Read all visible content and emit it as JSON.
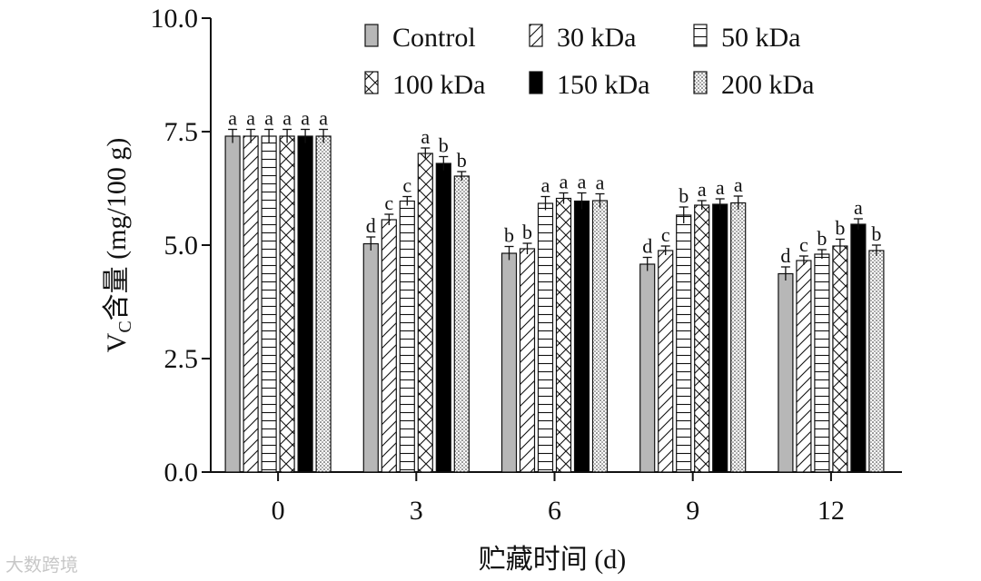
{
  "chart_data": {
    "type": "bar",
    "xlabel": "贮藏时间 (d)",
    "ylabel_main": "V",
    "ylabel_sub": "C",
    "ylabel_rest": "含量 (mg/100 g)",
    "ylim": [
      0,
      10
    ],
    "yticks": [
      "0.0",
      "2.5",
      "5.0",
      "7.5",
      "10.0"
    ],
    "categories": [
      "0",
      "3",
      "6",
      "9",
      "12"
    ],
    "legend_position": "top-right",
    "grid": false,
    "series": [
      {
        "name": "Control",
        "fill": "#b7b7b7",
        "pattern": "solid-gray",
        "values": [
          7.4,
          5.03,
          4.82,
          4.58,
          4.37
        ],
        "errors": [
          0.15,
          0.15,
          0.15,
          0.15,
          0.15
        ],
        "labels": [
          "a",
          "d",
          "b",
          "d",
          "d"
        ]
      },
      {
        "name": "30 kDa",
        "fill": "#ffffff",
        "pattern": "diagonal",
        "values": [
          7.4,
          5.56,
          4.92,
          4.88,
          4.66
        ],
        "errors": [
          0.15,
          0.12,
          0.12,
          0.1,
          0.1
        ],
        "labels": [
          "a",
          "c",
          "b",
          "c",
          "c"
        ]
      },
      {
        "name": "50 kDa",
        "fill": "#ffffff",
        "pattern": "horizontal",
        "values": [
          7.4,
          5.97,
          5.92,
          5.66,
          4.8
        ],
        "errors": [
          0.15,
          0.1,
          0.15,
          0.18,
          0.1
        ],
        "labels": [
          "a",
          "c",
          "a",
          "b",
          "b"
        ]
      },
      {
        "name": "100 kDa",
        "fill": "#ffffff",
        "pattern": "crosshatch",
        "values": [
          7.4,
          7.02,
          6.03,
          5.88,
          4.98
        ],
        "errors": [
          0.15,
          0.12,
          0.12,
          0.1,
          0.15
        ],
        "labels": [
          "a",
          "a",
          "a",
          "a",
          "b"
        ]
      },
      {
        "name": "150 kDa",
        "fill": "#000000",
        "pattern": "solid-black",
        "values": [
          7.4,
          6.8,
          5.97,
          5.9,
          5.46
        ],
        "errors": [
          0.15,
          0.15,
          0.18,
          0.12,
          0.12
        ],
        "labels": [
          "a",
          "b",
          "a",
          "a",
          "a"
        ]
      },
      {
        "name": "200 kDa",
        "fill": "#ffffff",
        "pattern": "dots",
        "values": [
          7.4,
          6.52,
          5.98,
          5.93,
          4.88
        ],
        "errors": [
          0.15,
          0.1,
          0.15,
          0.15,
          0.12
        ],
        "labels": [
          "a",
          "b",
          "a",
          "a",
          "b"
        ]
      }
    ]
  },
  "watermark": "大数跨境"
}
